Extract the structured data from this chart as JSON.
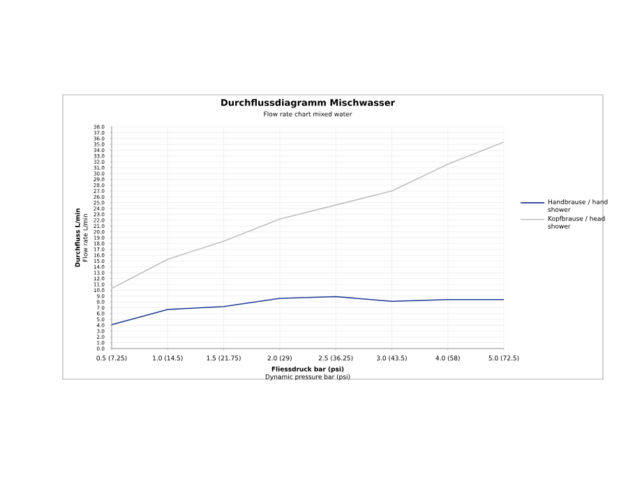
{
  "chart_data": {
    "type": "line",
    "title": "Durchflussdiagramm Mischwasser",
    "subtitle": "Flow rate chart mixed water",
    "xlabel": "Fliessdruck bar (psi)",
    "ylabel": "Durchfluss L/min",
    "annotations": [
      "Dynamic pressure bar (psi)",
      "Flow rate L/min"
    ],
    "categories": [
      "0.5 (7.25)",
      "1.0 (14.5)",
      "1.5 (21.75)",
      "2.0 (29)",
      "2.5 (36.25)",
      "3.0 (43.5)",
      "4.0 (58)",
      "5.0 (72.5)"
    ],
    "series": [
      {
        "name": "Handbrause / hand shower",
        "color": "#1f3a93",
        "values": [
          4.1,
          6.7,
          7.2,
          8.6,
          8.9,
          8.1,
          8.4,
          8.4
        ]
      },
      {
        "name": "Kopfbrause / head shower",
        "color": "#c0c0c0",
        "values": [
          10.3,
          15.3,
          18.4,
          22.2,
          24.6,
          27.0,
          31.6,
          35.4
        ]
      }
    ],
    "ylim": [
      0,
      38
    ],
    "yticks": [
      {
        "value": 0,
        "label": "0.0"
      },
      {
        "value": 1,
        "label": "1.0"
      },
      {
        "value": 2,
        "label": "2.0"
      },
      {
        "value": 3,
        "label": "3.0"
      },
      {
        "value": 4,
        "label": "4.0"
      },
      {
        "value": 5,
        "label": "5.0"
      },
      {
        "value": 6,
        "label": "6.0"
      },
      {
        "value": 7,
        "label": "7.0"
      },
      {
        "value": 8,
        "label": "8.0"
      },
      {
        "value": 9,
        "label": "9.0"
      },
      {
        "value": 10,
        "label": "10.0"
      },
      {
        "value": 11,
        "label": "11.0"
      },
      {
        "value": 12,
        "label": "12.0"
      },
      {
        "value": 13,
        "label": "13.0"
      },
      {
        "value": 14,
        "label": "14.0"
      },
      {
        "value": 15,
        "label": "15.0"
      },
      {
        "value": 16,
        "label": "16.0"
      },
      {
        "value": 17,
        "label": "17.0"
      },
      {
        "value": 18,
        "label": "18.0"
      },
      {
        "value": 19,
        "label": "19.0"
      },
      {
        "value": 20,
        "label": "20.0"
      },
      {
        "value": 21,
        "label": "21.0"
      },
      {
        "value": 22,
        "label": "22.0"
      },
      {
        "value": 23,
        "label": "23.0"
      },
      {
        "value": 24,
        "label": "24.0"
      },
      {
        "value": 25,
        "label": "25.0"
      },
      {
        "value": 26,
        "label": "26.0"
      },
      {
        "value": 27,
        "label": "27.0"
      },
      {
        "value": 28,
        "label": "28.0"
      },
      {
        "value": 29,
        "label": "29.0"
      },
      {
        "value": 30,
        "label": "30.0"
      },
      {
        "value": 31,
        "label": "31.0"
      },
      {
        "value": 32,
        "label": "32.0"
      },
      {
        "value": 33,
        "label": "33.0"
      },
      {
        "value": 34,
        "label": "34.0"
      },
      {
        "value": 35,
        "label": "35.0"
      },
      {
        "value": 36,
        "label": "36.0"
      },
      {
        "value": 37,
        "label": "37.0"
      },
      {
        "value": 38,
        "label": "38.0"
      }
    ],
    "grid": true,
    "legend": "right",
    "marker": "none",
    "line_style": "solid"
  }
}
